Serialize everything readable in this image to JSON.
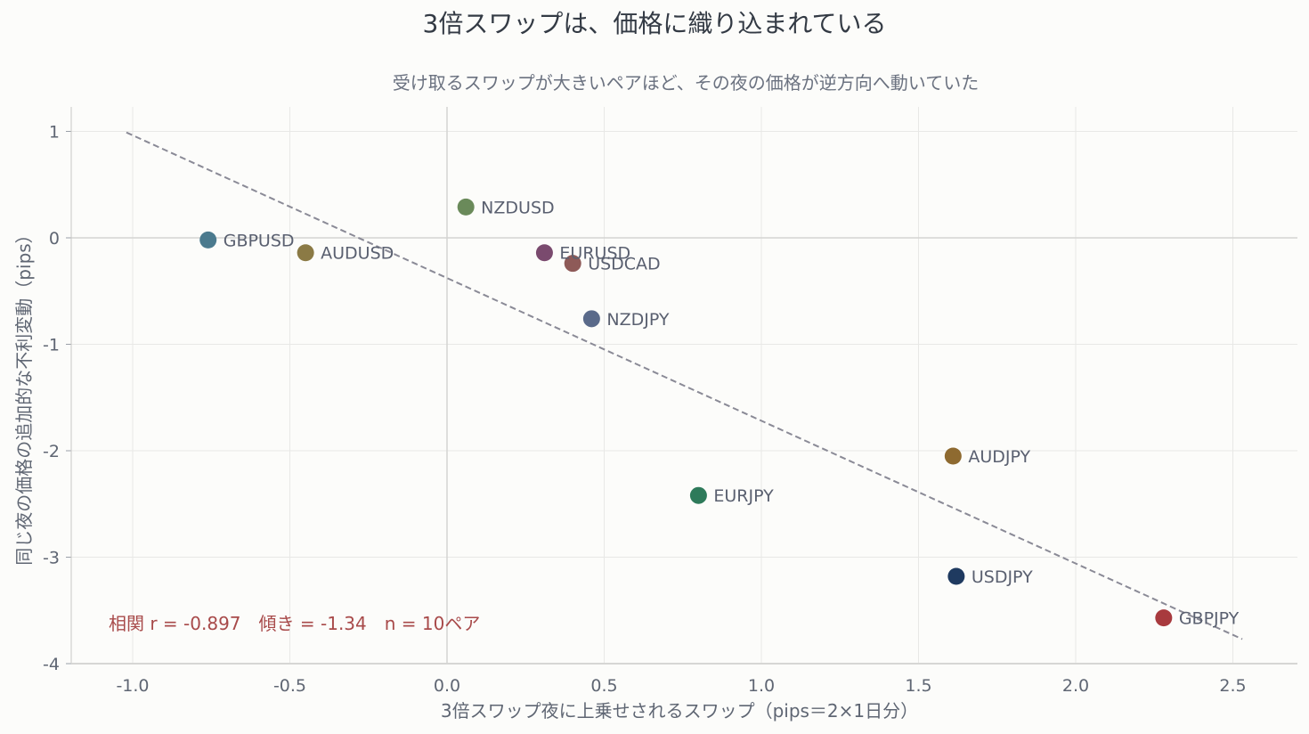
{
  "chart_data": {
    "type": "scatter",
    "title": "3倍スワップは、価格に織り込まれている",
    "subtitle": "受け取るスワップが大きいペアほど、その夜の価格が逆方向へ動いていた",
    "xlabel": "3倍スワップ夜に上乗せされるスワップ（pips＝2×1日分）",
    "ylabel": "同じ夜の価格の追加的な不利変動（pips）",
    "xlim": [
      -1.2,
      2.7
    ],
    "ylim": [
      -4.0,
      1.2
    ],
    "x_ticks": [
      -1.0,
      -0.5,
      0.0,
      0.5,
      1.0,
      1.5,
      2.0,
      2.5
    ],
    "x_tick_labels": [
      "-1.0",
      "-0.5",
      "0.0",
      "0.5",
      "1.0",
      "1.5",
      "2.0",
      "2.5"
    ],
    "y_ticks": [
      1,
      0,
      -1,
      -2,
      -3,
      -4
    ],
    "y_tick_labels": [
      "1",
      "0",
      "-1",
      "-2",
      "-3",
      "-4"
    ],
    "grid": true,
    "points": [
      {
        "label": "GBPUSD",
        "x": -0.76,
        "y": -0.02,
        "color": "#4b7a8e"
      },
      {
        "label": "AUDUSD",
        "x": -0.45,
        "y": -0.14,
        "color": "#8b7a45"
      },
      {
        "label": "NZDUSD",
        "x": 0.06,
        "y": 0.29,
        "color": "#6a8a5a"
      },
      {
        "label": "EURUSD",
        "x": 0.31,
        "y": -0.14,
        "color": "#7a4a6e"
      },
      {
        "label": "USDCAD",
        "x": 0.4,
        "y": -0.24,
        "color": "#8e5a58"
      },
      {
        "label": "NZDJPY",
        "x": 0.46,
        "y": -0.76,
        "color": "#5a6a8a"
      },
      {
        "label": "EURJPY",
        "x": 0.8,
        "y": -2.42,
        "color": "#2e7a5a"
      },
      {
        "label": "AUDJPY",
        "x": 1.61,
        "y": -2.05,
        "color": "#8e6a30"
      },
      {
        "label": "USDJPY",
        "x": 1.62,
        "y": -3.18,
        "color": "#1f3a60"
      },
      {
        "label": "GBPJPY",
        "x": 2.28,
        "y": -3.57,
        "color": "#a83a3e"
      }
    ],
    "trendline": {
      "x": [
        -1.02,
        2.53
      ],
      "y": [
        0.99,
        -3.77
      ],
      "color": "#8a8a96",
      "style": "dashed"
    },
    "annotation": "相関 r = -0.897　傾き = -1.34　n = 10ペア"
  }
}
